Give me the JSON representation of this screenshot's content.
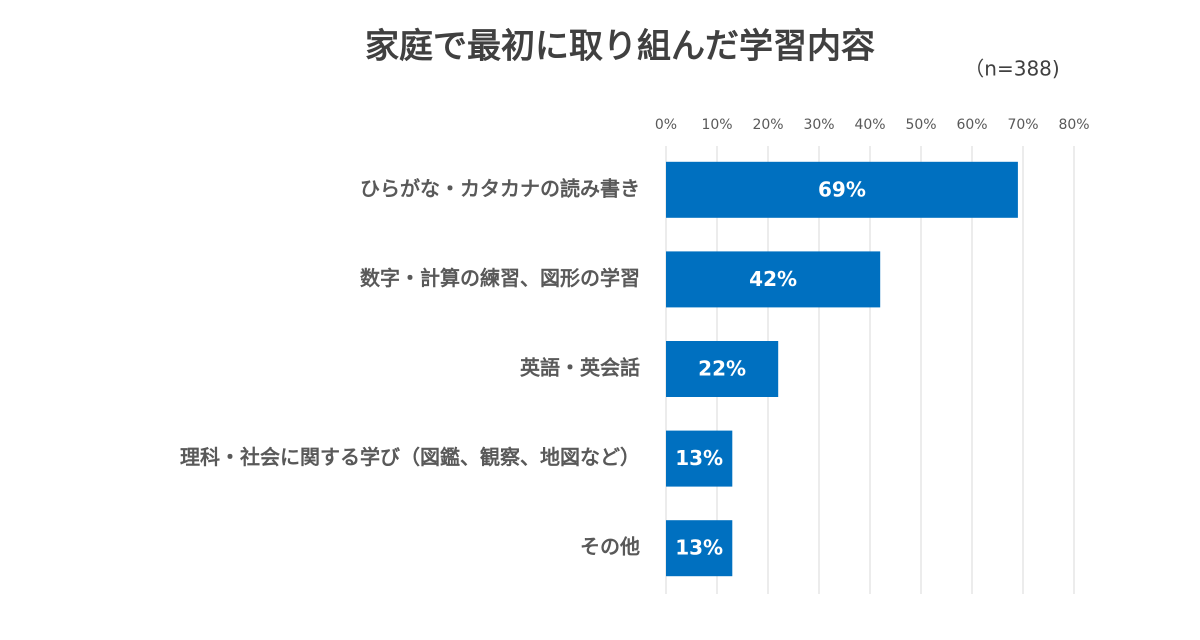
{
  "chart_data": {
    "type": "barh",
    "title": "家庭で最初に取り組んだ学習内容",
    "subtitle": "（n=388)",
    "categories": [
      "ひらがな・カタカナの読み書き",
      "数字・計算の練習、図形の学習",
      "英語・英会話",
      "理科・社会に関する学び（図鑑、観察、地図など）",
      "その他"
    ],
    "values": [
      69,
      42,
      22,
      13,
      13
    ],
    "value_labels": [
      "69%",
      "42%",
      "22%",
      "13%",
      "13%"
    ],
    "color": "#0070c0",
    "xlim": [
      0,
      80
    ],
    "xticks": [
      {
        "value": 0,
        "label": "0%"
      },
      {
        "value": 10,
        "label": "10%"
      },
      {
        "value": 20,
        "label": "20%"
      },
      {
        "value": 30,
        "label": "30%"
      },
      {
        "value": 40,
        "label": "40%"
      },
      {
        "value": 50,
        "label": "50%"
      },
      {
        "value": 60,
        "label": "60%"
      },
      {
        "value": 70,
        "label": "70%"
      },
      {
        "value": 80,
        "label": "80%"
      }
    ],
    "grid": true
  }
}
